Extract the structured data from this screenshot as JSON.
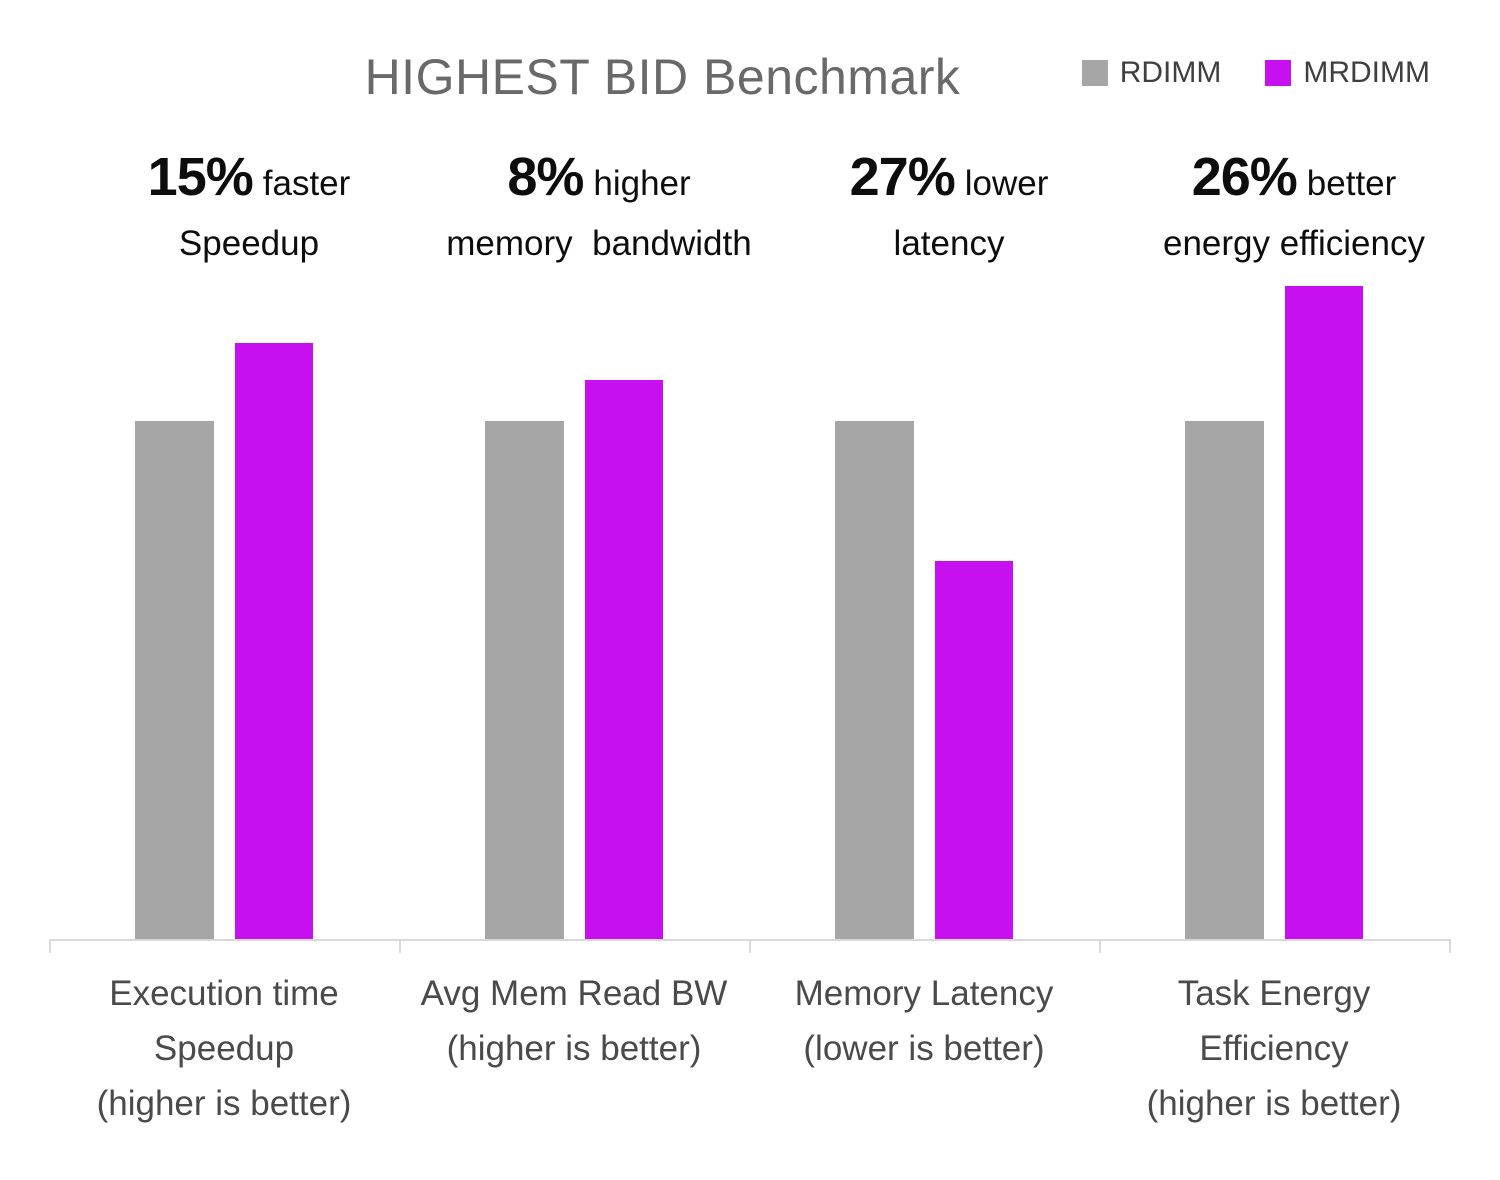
{
  "header": {
    "title": "HIGHEST BID Benchmark",
    "legend": [
      {
        "label": "RDIMM",
        "color": "#A6A6A6"
      },
      {
        "label": "MRDIMM",
        "color": "#C710F0"
      }
    ]
  },
  "annotations": [
    {
      "value": "15%",
      "qualifier": "faster",
      "line2": "Speedup"
    },
    {
      "value": "8%",
      "qualifier": "higher",
      "line2": "memory  bandwidth"
    },
    {
      "value": "27%",
      "qualifier": "lower",
      "line2": "latency"
    },
    {
      "value": "26%",
      "qualifier": "better",
      "line2": "energy efficiency"
    }
  ],
  "categories": [
    {
      "lines": [
        "Execution time",
        "Speedup",
        "(higher is better)"
      ]
    },
    {
      "lines": [
        "Avg Mem Read BW",
        "(higher is better)"
      ]
    },
    {
      "lines": [
        "Memory Latency",
        "(lower is better)"
      ]
    },
    {
      "lines": [
        "Task Energy",
        "Efficiency",
        "(higher is better)"
      ]
    }
  ],
  "chart_data": {
    "type": "bar",
    "title": "HIGHEST BID Benchmark",
    "categories": [
      "Execution time Speedup (higher is better)",
      "Avg Mem Read BW (higher is better)",
      "Memory Latency (lower is better)",
      "Task Energy Efficiency (higher is better)"
    ],
    "series": [
      {
        "name": "RDIMM",
        "color": "#A6A6A6",
        "values": [
          1.0,
          1.0,
          1.0,
          1.0
        ]
      },
      {
        "name": "MRDIMM",
        "color": "#C710F0",
        "values": [
          1.15,
          1.08,
          0.73,
          1.26
        ]
      }
    ],
    "annotations": [
      "15% faster Speedup",
      "8% higher memory  bandwidth",
      "27% lower latency",
      "26% better energy efficiency"
    ],
    "xlabel": "",
    "ylabel": "",
    "ylim": [
      0,
      1.35
    ],
    "grid": false,
    "value_axis_hidden": true,
    "legend_position": "top-right",
    "axis_color": "#D9D9D9"
  }
}
